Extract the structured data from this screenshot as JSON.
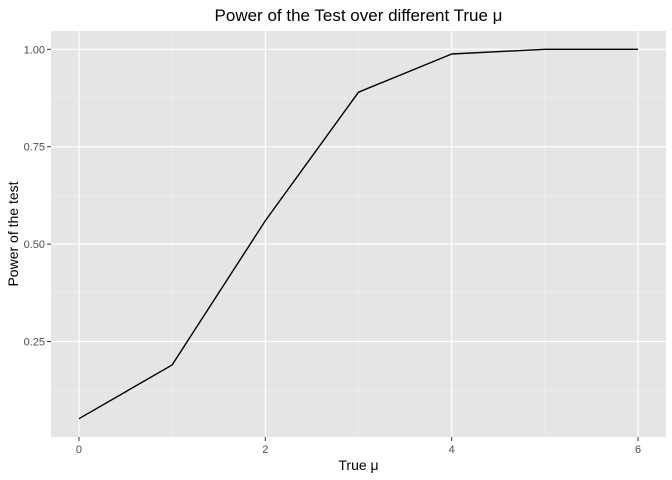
{
  "chart_data": {
    "type": "line",
    "title": "Power of the Test over different True μ",
    "xlabel": "True μ",
    "ylabel": "Power of the test",
    "x": [
      0,
      1,
      2,
      3,
      4,
      5,
      6
    ],
    "series": [
      {
        "values": [
          0.052,
          0.19,
          0.56,
          0.89,
          0.988,
          1.0,
          1.0
        ]
      }
    ],
    "xlim": [
      -0.3,
      6.3
    ],
    "ylim": [
      0.005,
      1.047
    ],
    "xticks": [
      0,
      2,
      4,
      6
    ],
    "xtick_labels": [
      "0",
      "2",
      "4",
      "6"
    ],
    "yticks": [
      0.25,
      0.5,
      0.75,
      1.0
    ],
    "ytick_labels": [
      "0.25",
      "0.50",
      "0.75",
      "1.00"
    ],
    "grid": true,
    "legend": "none",
    "colors": {
      "panel": "#e5e5e5",
      "grid_major": "#ffffff",
      "grid_minor": "#f2f2f2",
      "line": "#000000",
      "tick": "#333333"
    }
  }
}
